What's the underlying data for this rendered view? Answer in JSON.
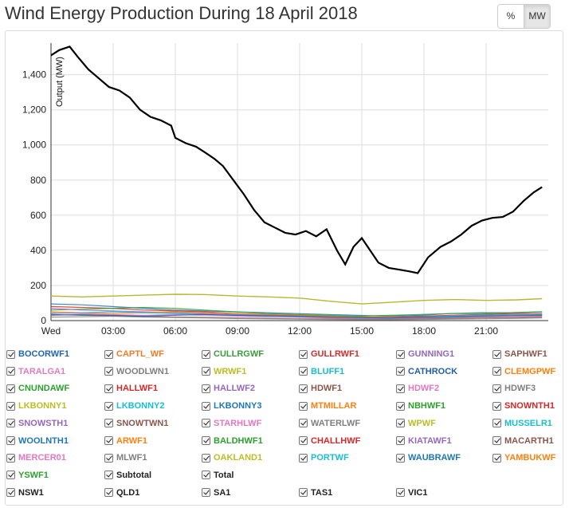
{
  "page": {
    "title": "Wind Energy Production During 18 April 2018",
    "unit_buttons": [
      {
        "label": "%",
        "active": false
      },
      {
        "label": "MW",
        "active": true
      }
    ]
  },
  "chart_data": {
    "type": "line",
    "title": "Wind Energy Production During 18 April 2018",
    "ylabel": "Output (MW)",
    "xlabel": "",
    "xlim": [
      0,
      24
    ],
    "ylim": [
      0,
      1580
    ],
    "grid": true,
    "x_ticks": [
      {
        "value": 0,
        "label": "Wed"
      },
      {
        "value": 3,
        "label": "03:00"
      },
      {
        "value": 6,
        "label": "06:00"
      },
      {
        "value": 9,
        "label": "09:00"
      },
      {
        "value": 12,
        "label": "12:00"
      },
      {
        "value": 15,
        "label": "15:00"
      },
      {
        "value": 18,
        "label": "18:00"
      },
      {
        "value": 21,
        "label": "21:00"
      }
    ],
    "y_ticks": [
      {
        "value": 0,
        "label": "0"
      },
      {
        "value": 200,
        "label": "200"
      },
      {
        "value": 400,
        "label": "400"
      },
      {
        "value": 600,
        "label": "600"
      },
      {
        "value": 800,
        "label": "800"
      },
      {
        "value": 1000,
        "label": "1,000"
      },
      {
        "value": 1200,
        "label": "1,200"
      },
      {
        "value": 1400,
        "label": "1,400"
      }
    ],
    "series": [
      {
        "name": "Total",
        "color": "#000000",
        "x": [
          0,
          0.4,
          0.9,
          1.3,
          1.8,
          2.3,
          2.8,
          3.3,
          3.8,
          4.3,
          4.8,
          5.3,
          5.8,
          6.0,
          6.5,
          7.0,
          7.4,
          7.9,
          8.3,
          8.8,
          9.3,
          9.8,
          10.3,
          10.8,
          11.3,
          11.8,
          12.3,
          12.8,
          13.3,
          13.8,
          14.2,
          14.6,
          15.0,
          15.4,
          15.8,
          16.3,
          16.8,
          17.3,
          17.7,
          18.2,
          18.8,
          19.3,
          19.8,
          20.3,
          20.8,
          21.3,
          21.8,
          22.3,
          22.8,
          23.3,
          23.7
        ],
        "values": [
          1510,
          1540,
          1560,
          1500,
          1430,
          1380,
          1330,
          1310,
          1270,
          1200,
          1160,
          1140,
          1110,
          1040,
          1010,
          990,
          960,
          920,
          880,
          800,
          720,
          630,
          560,
          530,
          500,
          490,
          510,
          480,
          520,
          400,
          320,
          420,
          470,
          400,
          330,
          300,
          290,
          280,
          270,
          360,
          420,
          450,
          490,
          540,
          570,
          585,
          590,
          620,
          680,
          730,
          760
        ]
      },
      {
        "name": "Subtotal",
        "color": "#b8b832",
        "x": [
          0,
          1.5,
          3,
          4.5,
          6,
          7.5,
          9,
          10.5,
          12,
          13.5,
          15,
          16.5,
          18,
          19.5,
          21,
          22.5,
          23.7
        ],
        "values": [
          140,
          135,
          140,
          145,
          150,
          148,
          140,
          135,
          128,
          110,
          95,
          105,
          115,
          120,
          115,
          118,
          125
        ]
      }
    ],
    "minor_series_note": "",
    "legend": {
      "items": [
        {
          "label": "BOCORWF1",
          "color": "#2066b0"
        },
        {
          "label": "CAPTL_WF",
          "color": "#f07a25"
        },
        {
          "label": "CULLRGWF",
          "color": "#3b9b3b"
        },
        {
          "label": "GULLRWF1",
          "color": "#d52b2b"
        },
        {
          "label": "GUNNING1",
          "color": "#9466bd"
        },
        {
          "label": "SAPHWF1",
          "color": "#8c564b"
        },
        {
          "label": "TARALGA1",
          "color": "#e37bc2"
        },
        {
          "label": "WOODLWN1",
          "color": "#7f7f7f"
        },
        {
          "label": "WRWF1",
          "color": "#bcbd22"
        },
        {
          "label": "BLUFF1",
          "color": "#17becf"
        },
        {
          "label": "CATHROCK",
          "color": "#1f5fa8"
        },
        {
          "label": "CLEMGPWF",
          "color": "#ff7f0e"
        },
        {
          "label": "CNUNDAWF",
          "color": "#2ca02c"
        },
        {
          "label": "HALLWF1",
          "color": "#d62728"
        },
        {
          "label": "HALLWF2",
          "color": "#9467bd"
        },
        {
          "label": "HDWF1",
          "color": "#8c564b"
        },
        {
          "label": "HDWF2",
          "color": "#e377c2"
        },
        {
          "label": "HDWF3",
          "color": "#7f7f7f"
        },
        {
          "label": "LKBONNY1",
          "color": "#bcbd22"
        },
        {
          "label": "LKBONNY2",
          "color": "#17becf"
        },
        {
          "label": "LKBONNY3",
          "color": "#1f77b4"
        },
        {
          "label": "MTMILLAR",
          "color": "#ff7f0e"
        },
        {
          "label": "NBHWF1",
          "color": "#2ca02c"
        },
        {
          "label": "SNOWNTH1",
          "color": "#d62728"
        },
        {
          "label": "SNOWSTH1",
          "color": "#9467bd"
        },
        {
          "label": "SNOWTWN1",
          "color": "#8c564b"
        },
        {
          "label": "STARHLWF",
          "color": "#e377c2"
        },
        {
          "label": "WATERLWF",
          "color": "#7f7f7f"
        },
        {
          "label": "WPWF",
          "color": "#bcbd22"
        },
        {
          "label": "MUSSELR1",
          "color": "#17becf"
        },
        {
          "label": "WOOLNTH1",
          "color": "#1f77b4"
        },
        {
          "label": "ARWF1",
          "color": "#ff7f0e"
        },
        {
          "label": "BALDHWF1",
          "color": "#2ca02c"
        },
        {
          "label": "CHALLHWF",
          "color": "#d62728"
        },
        {
          "label": "KIATAWF1",
          "color": "#9467bd"
        },
        {
          "label": "MACARTH1",
          "color": "#8c564b"
        },
        {
          "label": "MERCER01",
          "color": "#e377c2"
        },
        {
          "label": "MLWF1",
          "color": "#7f7f7f"
        },
        {
          "label": "OAKLAND1",
          "color": "#bcbd22"
        },
        {
          "label": "PORTWF",
          "color": "#17becf"
        },
        {
          "label": "WAUBRAWF",
          "color": "#1f77b4"
        },
        {
          "label": "YAMBUKWF",
          "color": "#ff7f0e"
        },
        {
          "label": "YSWF1",
          "color": "#2ca02c"
        },
        {
          "label": "Subtotal",
          "color": "#222222"
        },
        {
          "label": "Total",
          "color": "#222222"
        },
        {
          "label": "NSW1",
          "color": "#222222"
        },
        {
          "label": "QLD1",
          "color": "#222222"
        },
        {
          "label": "SA1",
          "color": "#222222"
        },
        {
          "label": "TAS1",
          "color": "#222222"
        },
        {
          "label": "VIC1",
          "color": "#222222"
        }
      ]
    },
    "minor_lines": [
      {
        "color": "#1f77b4",
        "values": [
          95,
          90,
          80,
          70,
          60,
          55,
          50,
          45,
          40,
          35,
          30,
          25,
          30,
          40,
          45,
          45,
          50
        ]
      },
      {
        "color": "#d62728",
        "values": [
          80,
          75,
          70,
          60,
          55,
          50,
          40,
          35,
          30,
          25,
          20,
          20,
          25,
          30,
          35,
          40,
          40
        ]
      },
      {
        "color": "#2ca02c",
        "values": [
          60,
          65,
          70,
          75,
          70,
          60,
          50,
          40,
          35,
          30,
          25,
          30,
          35,
          40,
          40,
          45,
          50
        ]
      },
      {
        "color": "#9467bd",
        "values": [
          70,
          60,
          55,
          50,
          45,
          40,
          35,
          30,
          25,
          20,
          15,
          15,
          20,
          25,
          30,
          35,
          35
        ]
      },
      {
        "color": "#ff7f0e",
        "values": [
          50,
          45,
          40,
          45,
          50,
          45,
          40,
          35,
          30,
          25,
          20,
          20,
          15,
          20,
          25,
          30,
          30
        ]
      },
      {
        "color": "#17becf",
        "values": [
          40,
          45,
          50,
          45,
          40,
          35,
          30,
          25,
          20,
          18,
          15,
          15,
          20,
          25,
          30,
          30,
          35
        ]
      },
      {
        "color": "#e377c2",
        "values": [
          45,
          40,
          35,
          30,
          35,
          30,
          25,
          20,
          18,
          15,
          12,
          12,
          15,
          18,
          20,
          22,
          25
        ]
      },
      {
        "color": "#8c564b",
        "values": [
          30,
          35,
          30,
          25,
          20,
          18,
          15,
          12,
          10,
          10,
          8,
          8,
          10,
          12,
          15,
          18,
          20
        ]
      },
      {
        "color": "#7f7f7f",
        "values": [
          20,
          22,
          25,
          20,
          18,
          15,
          12,
          10,
          8,
          6,
          5,
          5,
          6,
          8,
          10,
          12,
          15
        ]
      },
      {
        "color": "#1f5fa8",
        "values": [
          35,
          30,
          28,
          25,
          30,
          35,
          30,
          28,
          25,
          20,
          18,
          15,
          18,
          20,
          25,
          28,
          30
        ]
      }
    ]
  }
}
